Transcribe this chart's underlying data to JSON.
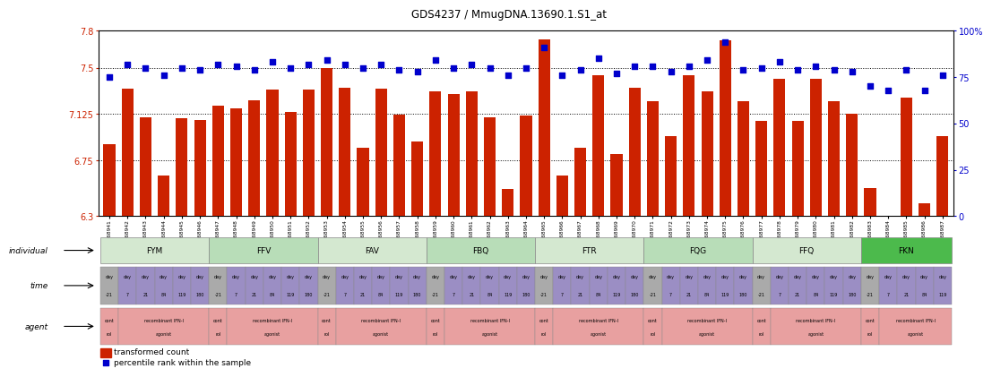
{
  "title": "GDS4237 / MmugDNA.13690.1.S1_at",
  "samples": [
    "GSM868941",
    "GSM868942",
    "GSM868943",
    "GSM868944",
    "GSM868945",
    "GSM868946",
    "GSM868947",
    "GSM868948",
    "GSM868949",
    "GSM868950",
    "GSM868951",
    "GSM868952",
    "GSM868953",
    "GSM868954",
    "GSM868955",
    "GSM868956",
    "GSM868957",
    "GSM868958",
    "GSM868959",
    "GSM868960",
    "GSM868961",
    "GSM868962",
    "GSM868963",
    "GSM868964",
    "GSM868965",
    "GSM868966",
    "GSM868967",
    "GSM868968",
    "GSM868969",
    "GSM868970",
    "GSM868971",
    "GSM868972",
    "GSM868973",
    "GSM868974",
    "GSM868975",
    "GSM868976",
    "GSM868977",
    "GSM868978",
    "GSM868979",
    "GSM868980",
    "GSM868981",
    "GSM868982",
    "GSM868983",
    "GSM868984",
    "GSM868985",
    "GSM868986",
    "GSM868987"
  ],
  "bar_values": [
    6.88,
    7.33,
    7.1,
    6.63,
    7.09,
    7.08,
    7.19,
    7.17,
    7.24,
    7.32,
    7.14,
    7.32,
    7.5,
    7.34,
    6.85,
    7.33,
    7.12,
    6.9,
    7.31,
    7.29,
    7.31,
    7.1,
    6.52,
    7.11,
    7.73,
    6.63,
    6.85,
    7.44,
    6.8,
    7.34,
    7.23,
    6.95,
    7.44,
    7.31,
    7.72,
    7.23,
    7.07,
    7.41,
    7.07,
    7.41,
    7.23,
    7.13,
    6.53,
    6.23,
    7.26,
    6.4,
    6.95
  ],
  "percentile_values": [
    75,
    82,
    80,
    76,
    80,
    79,
    82,
    81,
    79,
    83,
    80,
    82,
    84,
    82,
    80,
    82,
    79,
    78,
    84,
    80,
    82,
    80,
    76,
    80,
    91,
    76,
    79,
    85,
    77,
    81,
    81,
    78,
    81,
    84,
    94,
    79,
    80,
    83,
    79,
    81,
    79,
    78,
    70,
    68,
    79,
    68,
    76
  ],
  "bar_color": "#cc2200",
  "dot_color": "#0000cc",
  "ylim_left": [
    6.3,
    7.8
  ],
  "ylim_right": [
    0,
    100
  ],
  "yticks_left": [
    6.3,
    6.75,
    7.125,
    7.5,
    7.8
  ],
  "yticks_right": [
    0,
    25,
    50,
    75,
    100
  ],
  "ytick_labels_left": [
    "6.3",
    "6.75",
    "7.125",
    "7.5",
    "7.8"
  ],
  "ytick_labels_right": [
    "0",
    "25",
    "50",
    "75",
    "100%"
  ],
  "hline_values": [
    6.75,
    7.125,
    7.5
  ],
  "individuals": [
    {
      "label": "FYM",
      "start": 0,
      "end": 6
    },
    {
      "label": "FFV",
      "start": 6,
      "end": 12
    },
    {
      "label": "FAV",
      "start": 12,
      "end": 18
    },
    {
      "label": "FBQ",
      "start": 18,
      "end": 24
    },
    {
      "label": "FTR",
      "start": 24,
      "end": 30
    },
    {
      "label": "FQG",
      "start": 30,
      "end": 36
    },
    {
      "label": "FFQ",
      "start": 36,
      "end": 42
    },
    {
      "label": "FKN",
      "start": 42,
      "end": 47
    }
  ],
  "indiv_colors": [
    "#d4e8d0",
    "#b8ddb8",
    "#d4e8d0",
    "#b8ddb8",
    "#d4e8d0",
    "#b8ddb8",
    "#d4e8d0",
    "#4cba4c"
  ],
  "time_days": [
    "-21",
    "7",
    "21",
    "84",
    "119",
    "180"
  ],
  "time_ctrl_color": "#aaaaaa",
  "time_treat_color": "#9b8ec4",
  "agent_ctrl_color": "#e8a0a0",
  "agent_treat_color": "#e8a0a0",
  "background_color": "#ffffff"
}
